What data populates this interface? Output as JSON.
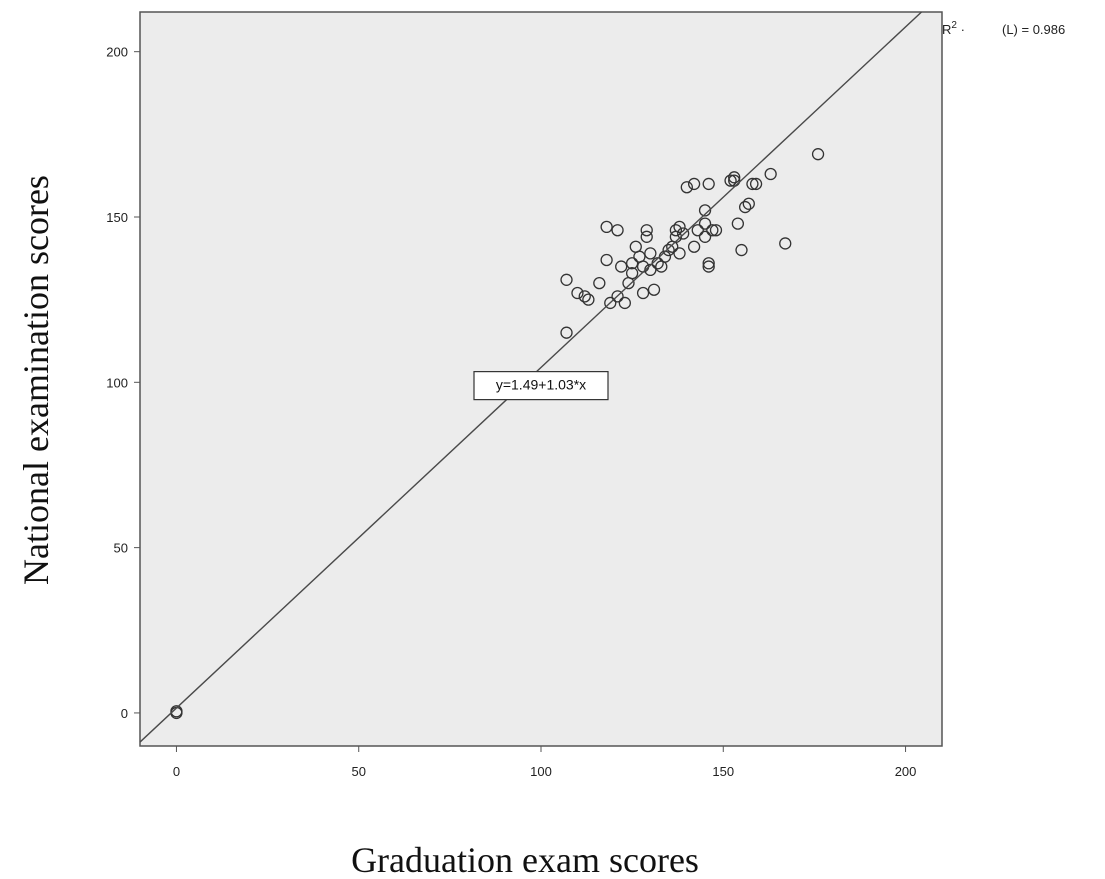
{
  "chart_data": {
    "type": "scatter",
    "xlabel": "Graduation exam scores",
    "ylabel": "National examination scores",
    "xlim": [
      -10,
      210
    ],
    "ylim": [
      -10,
      212
    ],
    "xticks": [
      0,
      50,
      100,
      150,
      200
    ],
    "yticks": [
      0,
      50,
      100,
      150,
      200
    ],
    "grid": false,
    "background_color": "#ececec",
    "marker_color": "#333333",
    "fit_line": {
      "intercept": 1.49,
      "slope": 1.03,
      "equation_label": "y=1.49+1.03*x",
      "label_x": 100,
      "label_y": 99
    },
    "r2_label": {
      "prefix": "R",
      "superscript": "2",
      "middle": " · ",
      "suffix": "(L) = 0.986"
    },
    "points": [
      [
        0,
        0
      ],
      [
        0,
        0.5
      ],
      [
        107,
        115
      ],
      [
        107,
        131
      ],
      [
        110,
        127
      ],
      [
        112,
        126
      ],
      [
        113,
        125
      ],
      [
        116,
        130
      ],
      [
        118,
        147
      ],
      [
        118,
        137
      ],
      [
        119,
        124
      ],
      [
        121,
        146
      ],
      [
        121,
        126
      ],
      [
        122,
        135
      ],
      [
        123,
        124
      ],
      [
        124,
        130
      ],
      [
        125,
        136
      ],
      [
        125,
        133
      ],
      [
        126,
        141
      ],
      [
        127,
        138
      ],
      [
        128,
        127
      ],
      [
        128,
        135
      ],
      [
        129,
        144
      ],
      [
        129,
        146
      ],
      [
        130,
        134
      ],
      [
        130,
        139
      ],
      [
        131,
        128
      ],
      [
        132,
        136
      ],
      [
        133,
        135
      ],
      [
        134,
        138
      ],
      [
        135,
        140
      ],
      [
        136,
        141
      ],
      [
        137,
        146
      ],
      [
        137,
        144
      ],
      [
        138,
        147
      ],
      [
        138,
        139
      ],
      [
        139,
        145
      ],
      [
        140,
        159
      ],
      [
        142,
        160
      ],
      [
        142,
        141
      ],
      [
        143,
        146
      ],
      [
        145,
        152
      ],
      [
        145,
        148
      ],
      [
        145,
        144
      ],
      [
        146,
        160
      ],
      [
        146,
        136
      ],
      [
        146,
        135
      ],
      [
        147,
        146
      ],
      [
        148,
        146
      ],
      [
        152,
        161
      ],
      [
        153,
        162
      ],
      [
        153,
        161
      ],
      [
        154,
        148
      ],
      [
        155,
        140
      ],
      [
        156,
        153
      ],
      [
        157,
        154
      ],
      [
        158,
        160
      ],
      [
        159,
        160
      ],
      [
        163,
        163
      ],
      [
        167,
        142
      ],
      [
        176,
        169
      ]
    ]
  }
}
